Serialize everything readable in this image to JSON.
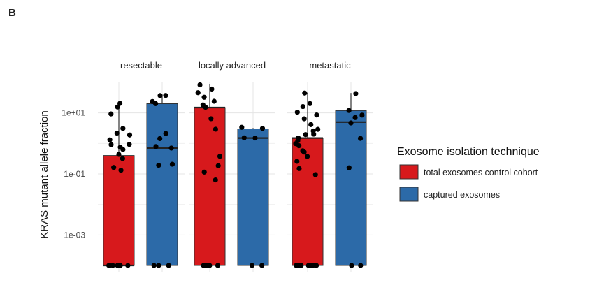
{
  "panel_label": "B",
  "chart_data": {
    "type": "bar",
    "subtype": "bar-with-boxplot-and-jitter",
    "ylabel": "KRAS mutant allele fraction",
    "xlabel": "",
    "y_scale": "log10",
    "ylim": [
      0.0001,
      100
    ],
    "y_ticks": [
      0.001,
      0.1,
      10
    ],
    "y_tick_labels": [
      "1e-03",
      "1e-01",
      "1e+01"
    ],
    "grid": true,
    "legend": {
      "title": "Exosome isolation technique",
      "position": "right",
      "entries": [
        {
          "label": "total exosomes control cohort",
          "color": "#d7191c"
        },
        {
          "label": "captured exosomes",
          "color": "#2c6aa8"
        }
      ]
    },
    "facets": [
      {
        "title": "resectable",
        "groups": [
          {
            "series": "total exosomes control cohort",
            "bar": 0.4,
            "median": 0.0001,
            "q3": 0.4,
            "whisker_low": 0.0001,
            "whisker_high": 20,
            "points": [
              0.0001,
              0.0001,
              0.0001,
              0.0001,
              0.0001,
              0.0001,
              0.0001,
              0.0001,
              0.13,
              0.17,
              0.3,
              0.42,
              0.6,
              0.75,
              0.85,
              1.0,
              1.3,
              1.8,
              2.2,
              3.0,
              10,
              15,
              20
            ]
          },
          {
            "series": "captured exosomes",
            "bar": 20,
            "median": 0.7,
            "q3": 20,
            "whisker_low": 0.0001,
            "whisker_high": 40,
            "points": [
              0.0001,
              0.0001,
              0.0001,
              0.18,
              0.2,
              0.7,
              0.8,
              1.5,
              2.0,
              20,
              22,
              38,
              40
            ]
          }
        ]
      },
      {
        "title": "locally advanced",
        "groups": [
          {
            "series": "total exosomes control cohort",
            "bar": 15,
            "median": 15,
            "q3": 15,
            "whisker_low": 0.0001,
            "whisker_high": 90,
            "points": [
              0.0001,
              0.0001,
              0.0001,
              0.0001,
              0.0001,
              0.0001,
              0.0001,
              0.0001,
              0.0001,
              0.06,
              0.12,
              0.2,
              0.4,
              3.0,
              6.0,
              15,
              18,
              25,
              35,
              45,
              60,
              90
            ]
          },
          {
            "series": "captured exosomes",
            "bar": 3,
            "median": 1.5,
            "q3": 3,
            "whisker_low": 0.0001,
            "whisker_high": 3.2,
            "points": [
              0.0001,
              0.0001,
              1.5,
              1.6,
              3.0,
              3.2
            ]
          }
        ]
      },
      {
        "title": "metastatic",
        "groups": [
          {
            "series": "total exosomes control cohort",
            "bar": 1.5,
            "median": 1.5,
            "q3": 1.5,
            "whisker_low": 0.0001,
            "whisker_high": 45,
            "points": [
              0.0001,
              0.0001,
              0.0001,
              0.0001,
              0.0001,
              0.0001,
              0.0001,
              0.0001,
              0.0001,
              0.0001,
              0.0001,
              0.1,
              0.15,
              0.25,
              0.35,
              0.5,
              0.6,
              0.8,
              1.0,
              1.2,
              1.5,
              1.8,
              2.0,
              2.5,
              3.0,
              4.0,
              6.0,
              8.0,
              10,
              15,
              20,
              45
            ]
          },
          {
            "series": "captured exosomes",
            "bar": 12,
            "median": 5,
            "q3": 12,
            "whisker_low": 0.0001,
            "whisker_high": 45,
            "points": [
              0.0001,
              0.0001,
              0.15,
              1.5,
              5,
              7,
              9,
              12,
              45
            ]
          }
        ]
      }
    ]
  }
}
